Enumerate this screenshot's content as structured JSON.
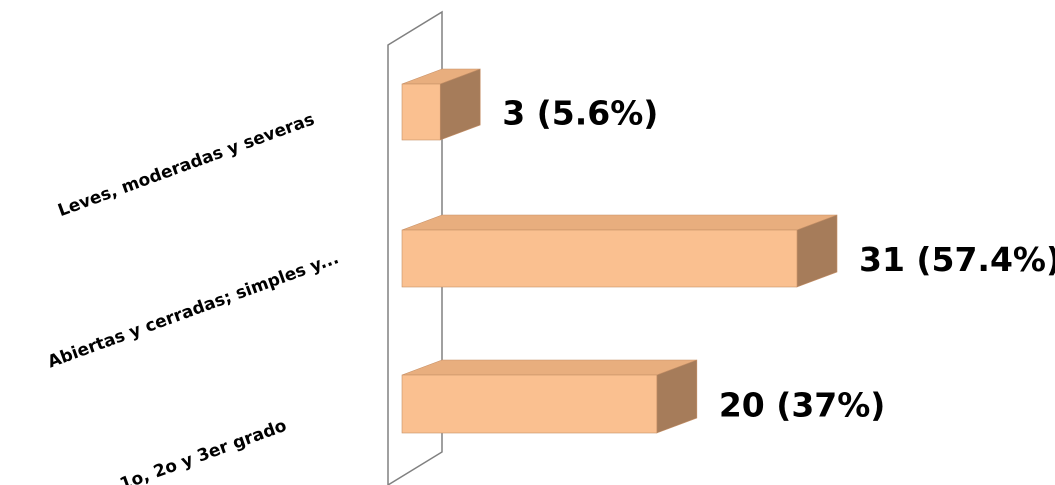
{
  "chart_data": {
    "type": "bar",
    "orientation": "horizontal",
    "style": "3d",
    "categories": [
      "Leves, moderadas y severas",
      "Abiertas y cerradas; simples y...",
      "1o, 2o y 3er grado"
    ],
    "values": [
      3,
      31,
      20
    ],
    "data_labels": [
      "3 (5.6%)",
      "31 (57.4%)",
      "20 (37%)"
    ],
    "xlim": [
      0,
      31
    ],
    "grid": false,
    "legend": "none",
    "colors": {
      "bar_front": "#FAC090",
      "bar_top": "#E8AE7E",
      "bar_side": "#A67C5A",
      "bar_edge": "#C69067",
      "wall": "#808080"
    }
  }
}
